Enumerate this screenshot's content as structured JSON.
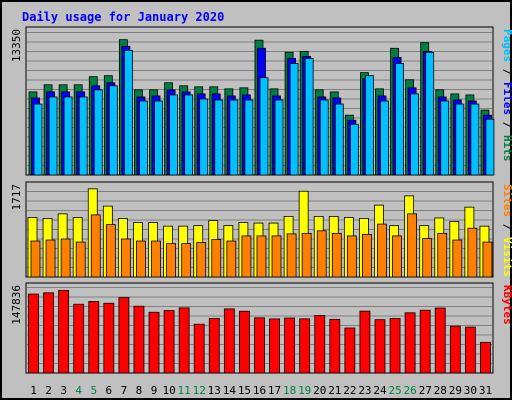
{
  "chart_data": {
    "type": "bar",
    "title": "Daily usage for January 2020",
    "days": [
      "1",
      "2",
      "3",
      "4",
      "5",
      "6",
      "7",
      "8",
      "9",
      "10",
      "11",
      "12",
      "13",
      "14",
      "15",
      "16",
      "17",
      "18",
      "19",
      "20",
      "21",
      "22",
      "23",
      "24",
      "25",
      "26",
      "27",
      "28",
      "29",
      "30",
      "31"
    ],
    "weekend_days": [
      "4",
      "5",
      "11",
      "12",
      "18",
      "19",
      "25",
      "26"
    ],
    "panels": [
      {
        "id": "hits",
        "max_label": "13350",
        "ylim": [
          0,
          14600
        ],
        "right_label": [
          "Pages",
          "/",
          "Files",
          "/",
          "Hits"
        ],
        "right_label_colors": [
          "#00c0ff",
          "#000000",
          "#0000ff",
          "#000000",
          "#008040"
        ],
        "series": [
          {
            "name": "Hits",
            "color": "#008040",
            "values": [
              8200,
              8900,
              8900,
              8900,
              9700,
              9800,
              13350,
              8400,
              8400,
              9100,
              8800,
              8700,
              8700,
              8500,
              8600,
              13300,
              8500,
              12100,
              12200,
              8400,
              8200,
              5900,
              10100,
              8500,
              12500,
              9400,
              13050,
              8400,
              8000,
              7900,
              6400
            ]
          },
          {
            "name": "Files",
            "color": "#0000ff",
            "values": [
              7600,
              8200,
              8200,
              8200,
              8800,
              9100,
              12700,
              7700,
              7800,
              8400,
              8200,
              8000,
              8000,
              7800,
              7900,
              12500,
              7800,
              11500,
              11700,
              7700,
              7600,
              5400,
              9500,
              7800,
              11600,
              8600,
              12200,
              7700,
              7400,
              7300,
              5900
            ]
          },
          {
            "name": "Pages",
            "color": "#00c0ff",
            "values": [
              7000,
              7700,
              7700,
              7700,
              8400,
              8800,
              12300,
              7300,
              7300,
              7900,
              7900,
              7500,
              7400,
              7400,
              7400,
              9600,
              7400,
              11000,
              11500,
              7400,
              7000,
              5000,
              9800,
              7300,
              11000,
              8000,
              12100,
              7300,
              7000,
              7000,
              5500
            ]
          }
        ]
      },
      {
        "id": "visits",
        "max_label": "1717",
        "ylim": [
          0,
          1850
        ],
        "right_label": [
          "Sites",
          "/",
          "Visits"
        ],
        "right_label_colors": [
          "#ff8000",
          "#000000",
          "#ffff00"
        ],
        "series": [
          {
            "name": "Visits",
            "color": "#ffff00",
            "values": [
              1160,
              1140,
              1230,
              1160,
              1717,
              1380,
              1140,
              1060,
              1060,
              990,
              990,
              1000,
              1100,
              1000,
              1060,
              1050,
              1050,
              1180,
              1670,
              1180,
              1180,
              1160,
              1140,
              1400,
              1000,
              1580,
              1000,
              1150,
              1080,
              1360,
              990
            ]
          },
          {
            "name": "Sites",
            "color": "#ff8000",
            "values": [
              700,
              720,
              740,
              680,
              1210,
              1020,
              740,
              700,
              700,
              650,
              650,
              670,
              730,
              700,
              800,
              800,
              800,
              840,
              850,
              900,
              850,
              800,
              830,
              1030,
              800,
              1230,
              750,
              850,
              720,
              950,
              680
            ]
          }
        ]
      },
      {
        "id": "kbytes",
        "max_label": "147836",
        "ylim": [
          0,
          161000
        ],
        "right_label": [
          "KBytes"
        ],
        "right_label_colors": [
          "#ff0000"
        ],
        "series": [
          {
            "name": "KBytes",
            "color": "#ff0000",
            "values": [
              141200,
              143500,
              147836,
              123000,
              128000,
              124800,
              134800,
              119500,
              108700,
              111700,
              116500,
              87300,
              97600,
              114700,
              110500,
              98700,
              96700,
              98300,
              96900,
              103000,
              96000,
              80500,
              110700,
              95400,
              97600,
              107700,
              112300,
              116200,
              83800,
              82100,
              54900
            ]
          }
        ]
      }
    ],
    "grid": true
  }
}
